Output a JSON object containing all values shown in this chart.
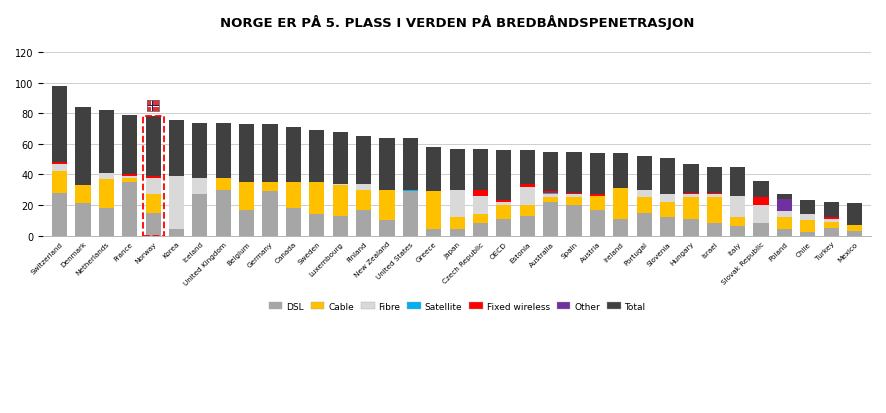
{
  "title": "NORGE ER PÅ 5. PLASS I VERDEN PÅ BREDBÅNDSPENETRASJON",
  "countries": [
    "Switzerland",
    "Denmark",
    "Netherlands",
    "France",
    "Norway",
    "Korea",
    "Iceland",
    "United Kingdom",
    "Belgium",
    "Germany",
    "Canada",
    "Sweden",
    "Luxembourg",
    "Finland",
    "New Zealand",
    "United States",
    "Greece",
    "Japan",
    "Czech Republic",
    "OECD",
    "Estonia",
    "Australia",
    "Spain",
    "Austria",
    "Ireland",
    "Portugal",
    "Slovenia",
    "Hungary",
    "Israel",
    "Italy",
    "Slovak Republic",
    "Poland",
    "Chile",
    "Turkey",
    "Mexico"
  ],
  "DSL": [
    28,
    21,
    18,
    35,
    15,
    4,
    27,
    30,
    17,
    29,
    18,
    14,
    13,
    17,
    10,
    29,
    4,
    4,
    8,
    11,
    13,
    22,
    20,
    17,
    11,
    15,
    12,
    11,
    8,
    6,
    8,
    4,
    2,
    5,
    3
  ],
  "Cable": [
    14,
    12,
    19,
    3,
    12,
    0,
    0,
    8,
    18,
    6,
    17,
    21,
    20,
    13,
    20,
    0,
    25,
    8,
    6,
    9,
    7,
    3,
    5,
    9,
    20,
    10,
    10,
    14,
    17,
    6,
    0,
    8,
    8,
    4,
    4
  ],
  "Fibre": [
    5,
    0,
    4,
    1,
    11,
    35,
    11,
    0,
    0,
    0,
    0,
    0,
    1,
    4,
    0,
    0,
    0,
    18,
    12,
    2,
    12,
    2,
    2,
    0,
    0,
    5,
    5,
    2,
    2,
    14,
    12,
    4,
    4,
    2,
    0
  ],
  "Satellite": [
    0,
    0,
    0,
    0,
    0,
    0,
    0,
    0,
    0,
    0,
    0,
    0,
    0,
    0,
    0,
    1,
    0,
    0,
    0,
    0,
    0,
    1,
    0,
    0,
    0,
    0,
    0,
    0,
    0,
    0,
    0,
    0,
    0,
    0,
    0
  ],
  "Fixed_wireless": [
    1,
    0,
    0,
    1,
    1,
    0,
    0,
    0,
    0,
    0,
    0,
    0,
    0,
    0,
    0,
    0,
    0,
    0,
    4,
    1,
    2,
    1,
    1,
    1,
    0,
    0,
    0,
    1,
    1,
    0,
    5,
    0,
    0,
    1,
    0
  ],
  "Other": [
    0,
    0,
    0,
    0,
    0,
    0,
    0,
    0,
    0,
    0,
    0,
    0,
    0,
    0,
    0,
    0,
    0,
    0,
    0,
    0,
    0,
    0,
    0,
    0,
    0,
    0,
    0,
    0,
    0,
    0,
    0,
    8,
    0,
    0,
    0
  ],
  "Total": [
    98,
    84,
    82,
    79,
    78,
    76,
    74,
    74,
    73,
    73,
    71,
    69,
    68,
    65,
    64,
    64,
    58,
    57,
    57,
    56,
    56,
    55,
    55,
    54,
    54,
    52,
    51,
    47,
    45,
    45,
    36,
    27,
    23,
    22,
    21
  ],
  "colors": {
    "DSL": "#a6a6a6",
    "Cable": "#ffc000",
    "Fibre": "#d9d9d9",
    "Satellite": "#00b0f0",
    "Fixed_wireless": "#ff0000",
    "Other": "#7030a0",
    "Total": "#404040"
  },
  "ylim": [
    0,
    130
  ],
  "yticks": [
    0,
    20,
    40,
    60,
    80,
    100,
    120
  ],
  "norway_index": 4,
  "background_color": "#ffffff"
}
